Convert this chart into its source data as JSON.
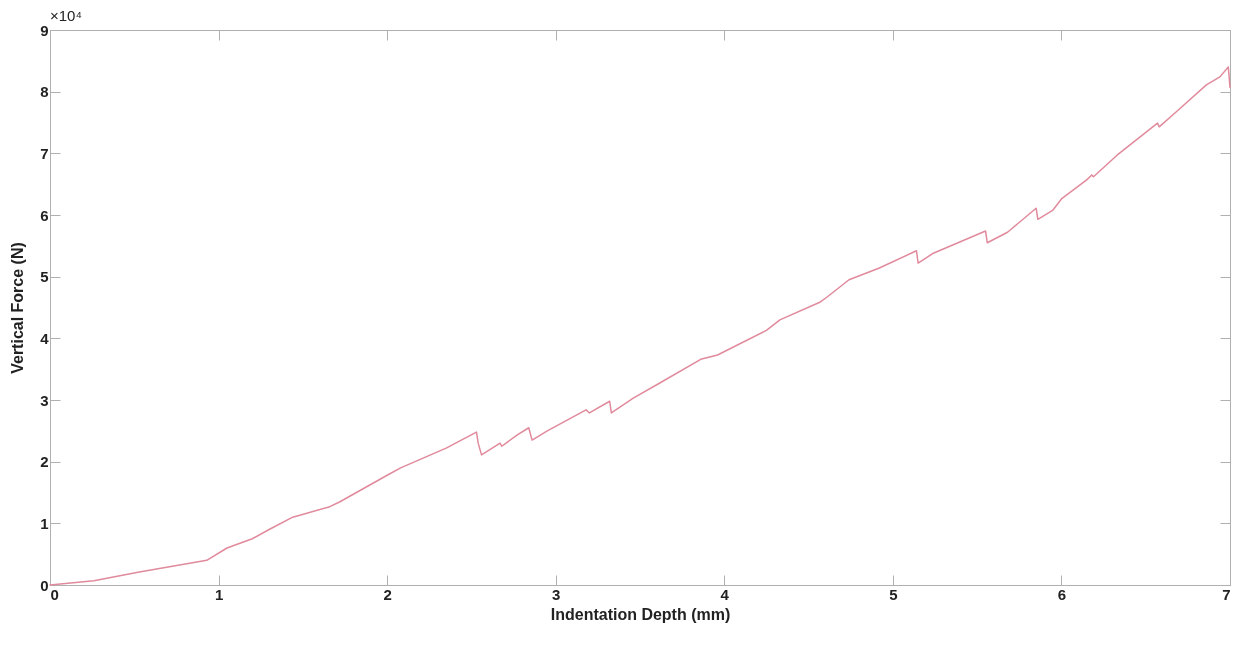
{
  "chart_data": {
    "type": "line",
    "xlabel": "Indentation Depth (mm)",
    "ylabel": "Vertical Force (N)",
    "annotations": [
      "×10⁴"
    ],
    "xlim": [
      0,
      7
    ],
    "xticks": [
      0,
      1,
      2,
      3,
      4,
      5,
      6,
      7
    ],
    "ylim": [
      0,
      9
    ],
    "yticks": [
      0,
      1,
      2,
      3,
      4,
      5,
      6,
      7,
      8,
      9
    ],
    "grid": false,
    "series": [
      {
        "color": "#e08a9c",
        "x": [
          0,
          0.26,
          0.53,
          0.93,
          1.05,
          1.2,
          1.3,
          1.44,
          1.66,
          1.72,
          2.0,
          2.08,
          2.35,
          2.53,
          2.54,
          2.56,
          2.67,
          2.68,
          2.77,
          2.84,
          2.86,
          2.95,
          3.18,
          3.2,
          3.32,
          3.33,
          3.46,
          3.62,
          3.86,
          3.96,
          4.25,
          4.33,
          4.57,
          4.61,
          4.74,
          4.92,
          5.14,
          5.15,
          5.24,
          5.55,
          5.56,
          5.68,
          5.85,
          5.86,
          5.95,
          6.0,
          6.15,
          6.18,
          6.19,
          6.33,
          6.57,
          6.58,
          6.68,
          6.86,
          6.94,
          6.99,
          7.0
        ],
        "values": [
          0,
          0.07,
          0.21,
          0.4,
          0.6,
          0.75,
          0.9,
          1.1,
          1.27,
          1.35,
          1.78,
          1.9,
          2.22,
          2.48,
          2.3,
          2.11,
          2.3,
          2.25,
          2.43,
          2.55,
          2.35,
          2.5,
          2.84,
          2.79,
          2.98,
          2.79,
          3.03,
          3.28,
          3.66,
          3.73,
          4.13,
          4.3,
          4.59,
          4.67,
          4.95,
          5.14,
          5.42,
          5.22,
          5.38,
          5.74,
          5.55,
          5.72,
          6.11,
          5.93,
          6.08,
          6.26,
          6.57,
          6.65,
          6.62,
          6.97,
          7.49,
          7.43,
          7.67,
          8.11,
          8.24,
          8.4,
          8.07
        ]
      }
    ]
  }
}
